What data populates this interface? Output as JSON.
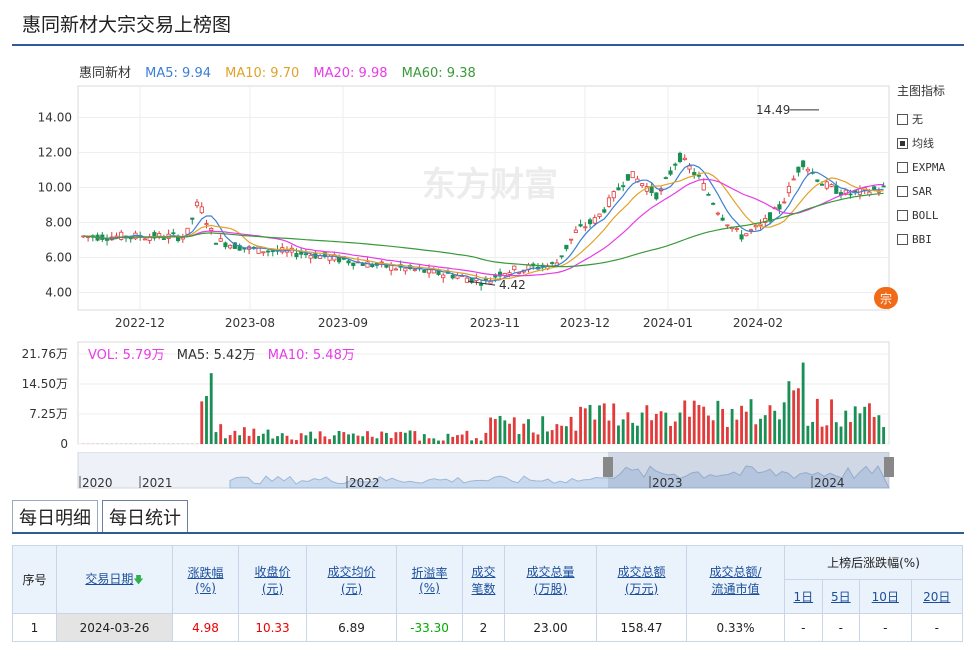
{
  "page_title": "惠同新材大宗交易上榜图",
  "main_legend": {
    "stock": "惠同新材",
    "ma5": "MA5: 9.94",
    "ma10": "MA10: 9.70",
    "ma20": "MA20: 9.98",
    "ma60": "MA60: 9.38"
  },
  "colors": {
    "ma5": "#3b7fd6",
    "ma10": "#e0a22a",
    "ma20": "#e83be8",
    "ma60": "#3a9a3a",
    "up": "#e23b3b",
    "down": "#1a8f55",
    "accent": "#2f5b9a"
  },
  "watermark": "东方财富",
  "price_axis": {
    "ticks": [
      "14.00",
      "12.00",
      "10.00",
      "8.00",
      "6.00",
      "4.00"
    ],
    "min": 3.0,
    "max": 15.8
  },
  "date_axis": [
    "2022-12",
    "2023-08",
    "2023-09",
    "2023-11",
    "2023-12",
    "2024-01",
    "2024-02"
  ],
  "annotations": {
    "high": "14.49",
    "low": "4.42"
  },
  "indicator_panel": {
    "title": "主图指标",
    "options": [
      {
        "label": "无",
        "checked": false
      },
      {
        "label": "均线",
        "checked": true
      },
      {
        "label": "EXPMA",
        "checked": false
      },
      {
        "label": "SAR",
        "checked": false
      },
      {
        "label": "BOLL",
        "checked": false
      },
      {
        "label": "BBI",
        "checked": false
      }
    ]
  },
  "zong_badge": "宗",
  "volume_legend": {
    "vol": "VOL: 5.79万",
    "ma5": "MA5: 5.42万",
    "ma10": "MA10: 5.48万"
  },
  "volume_axis": {
    "ticks": [
      "21.76万",
      "14.50万",
      "7.25万",
      "0"
    ],
    "max": 21.76
  },
  "timeline_labels": [
    "2020",
    "2021",
    "2022",
    "2023",
    "2024"
  ],
  "tabs": [
    "每日明细",
    "每日统计"
  ],
  "table": {
    "headers": {
      "seq": "序号",
      "date": "交易日期",
      "change_line1": "涨跌幅",
      "change_line2": "(%)",
      "close_line1": "收盘价",
      "close_line2": "(元)",
      "avgprice_line1": "成交均价",
      "avgprice_line2": "(元)",
      "premium_line1": "折溢率",
      "premium_line2": "(%)",
      "count_line1": "成交",
      "count_line2": "笔数",
      "volume_line1": "成交总量",
      "volume_line2": "(万股)",
      "amount_line1": "成交总额",
      "amount_line2": "(万元)",
      "ratio_line1": "成交总额/",
      "ratio_line2": "流通市值",
      "after_title": "上榜后涨跌幅(%)",
      "after": [
        "1日",
        "5日",
        "10日",
        "20日"
      ]
    },
    "rows": [
      {
        "seq": "1",
        "date": "2024-03-26",
        "change": "4.98",
        "close": "10.33",
        "avg_price": "6.89",
        "premium": "-33.30",
        "count": "2",
        "volume": "23.00",
        "amount": "158.47",
        "ratio": "0.33%",
        "d1": "-",
        "d5": "-",
        "d10": "-",
        "d20": "-"
      }
    ]
  }
}
